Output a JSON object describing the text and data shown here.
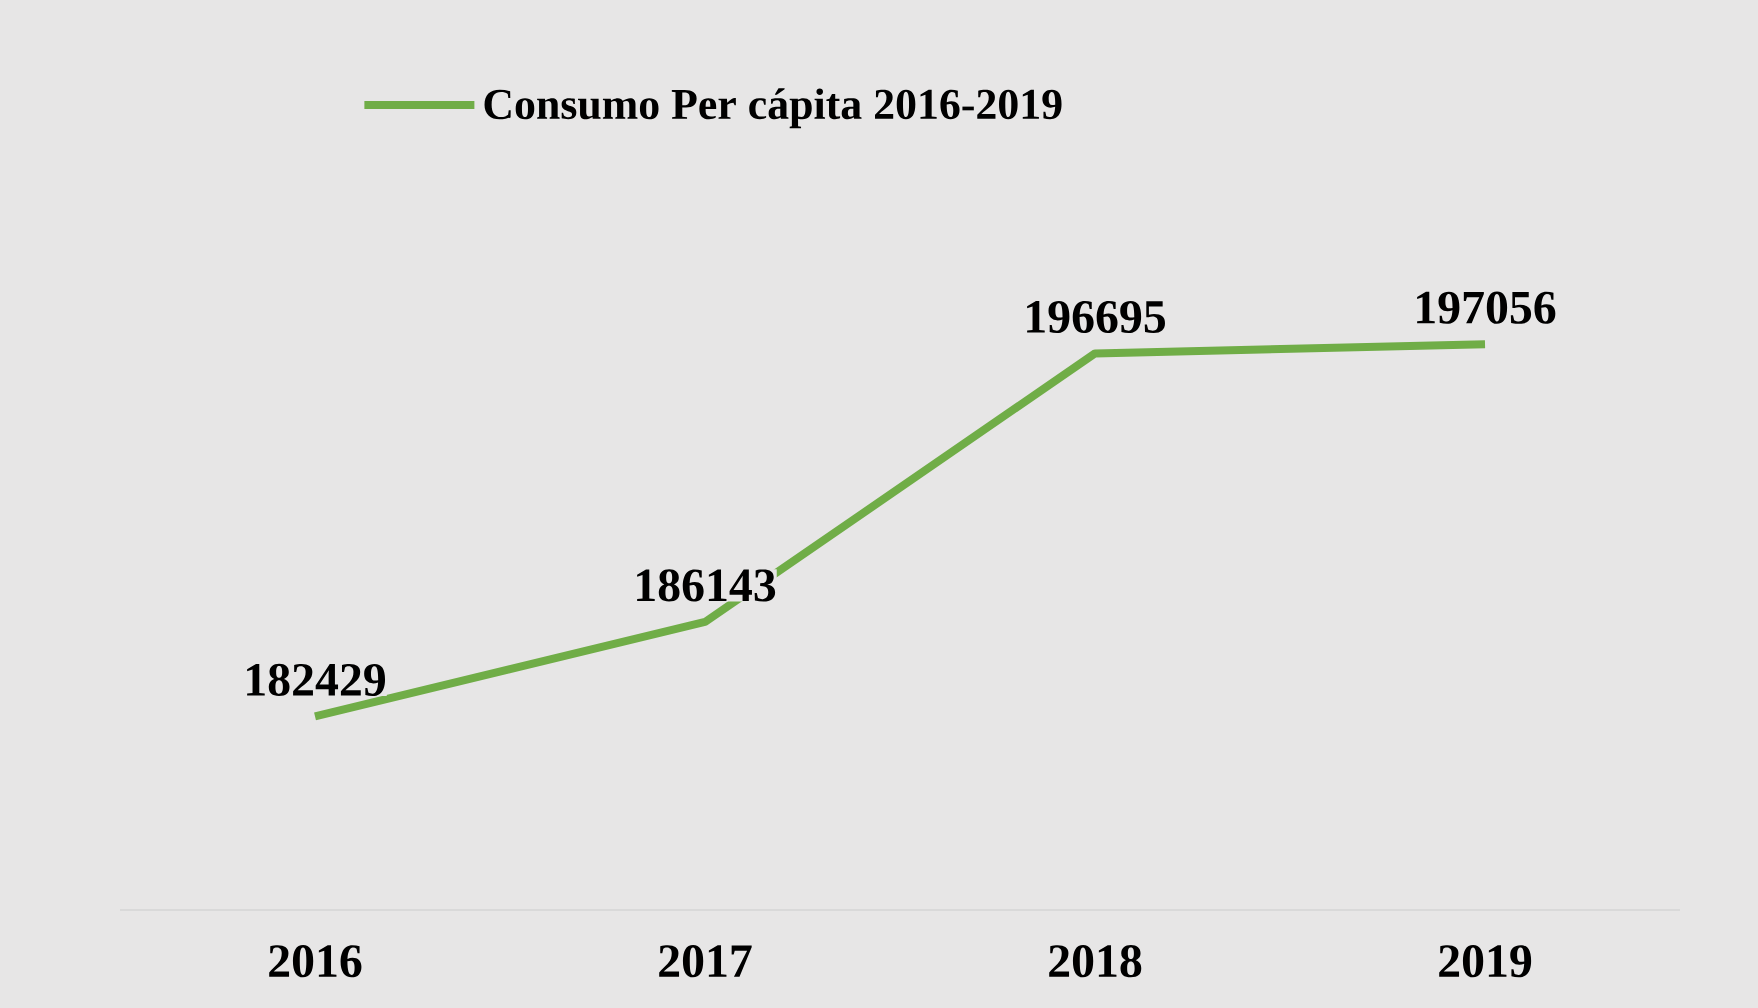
{
  "chart_data": {
    "type": "line",
    "categories": [
      "2016",
      "2017",
      "2018",
      "2019"
    ],
    "series": [
      {
        "name": "Consumo Per cápita 2016-2019",
        "color": "#70ad47",
        "values": [
          182429,
          186143,
          196695,
          197056
        ]
      }
    ],
    "data_labels": true,
    "legend": "top",
    "grid": false,
    "marker": "none",
    "line_style": "solid"
  }
}
